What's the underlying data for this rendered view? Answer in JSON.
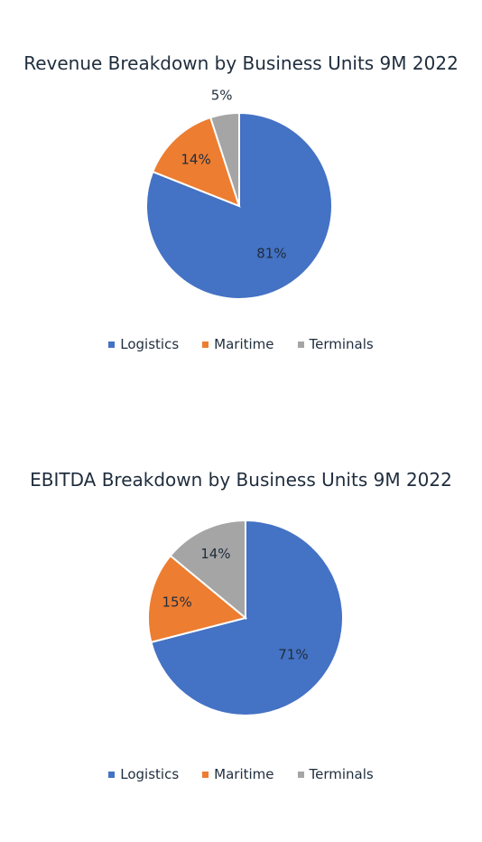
{
  "chart_data": [
    {
      "type": "pie",
      "title": "Revenue Breakdown by Business Units 9M 2022",
      "categories": [
        "Logistics",
        "Maritime",
        "Terminals"
      ],
      "values": [
        81,
        14,
        5
      ],
      "labels": [
        "81%",
        "14%",
        "5%"
      ],
      "colors": [
        "#4472c4",
        "#ed7d31",
        "#a5a5a5"
      ],
      "legend": "bottom"
    },
    {
      "type": "pie",
      "title": "EBITDA Breakdown by Business Units 9M 2022",
      "categories": [
        "Logistics",
        "Maritime",
        "Terminals"
      ],
      "values": [
        71,
        15,
        14
      ],
      "labels": [
        "71%",
        "15%",
        "14%"
      ],
      "colors": [
        "#4472c4",
        "#ed7d31",
        "#a5a5a5"
      ],
      "legend": "bottom"
    }
  ]
}
